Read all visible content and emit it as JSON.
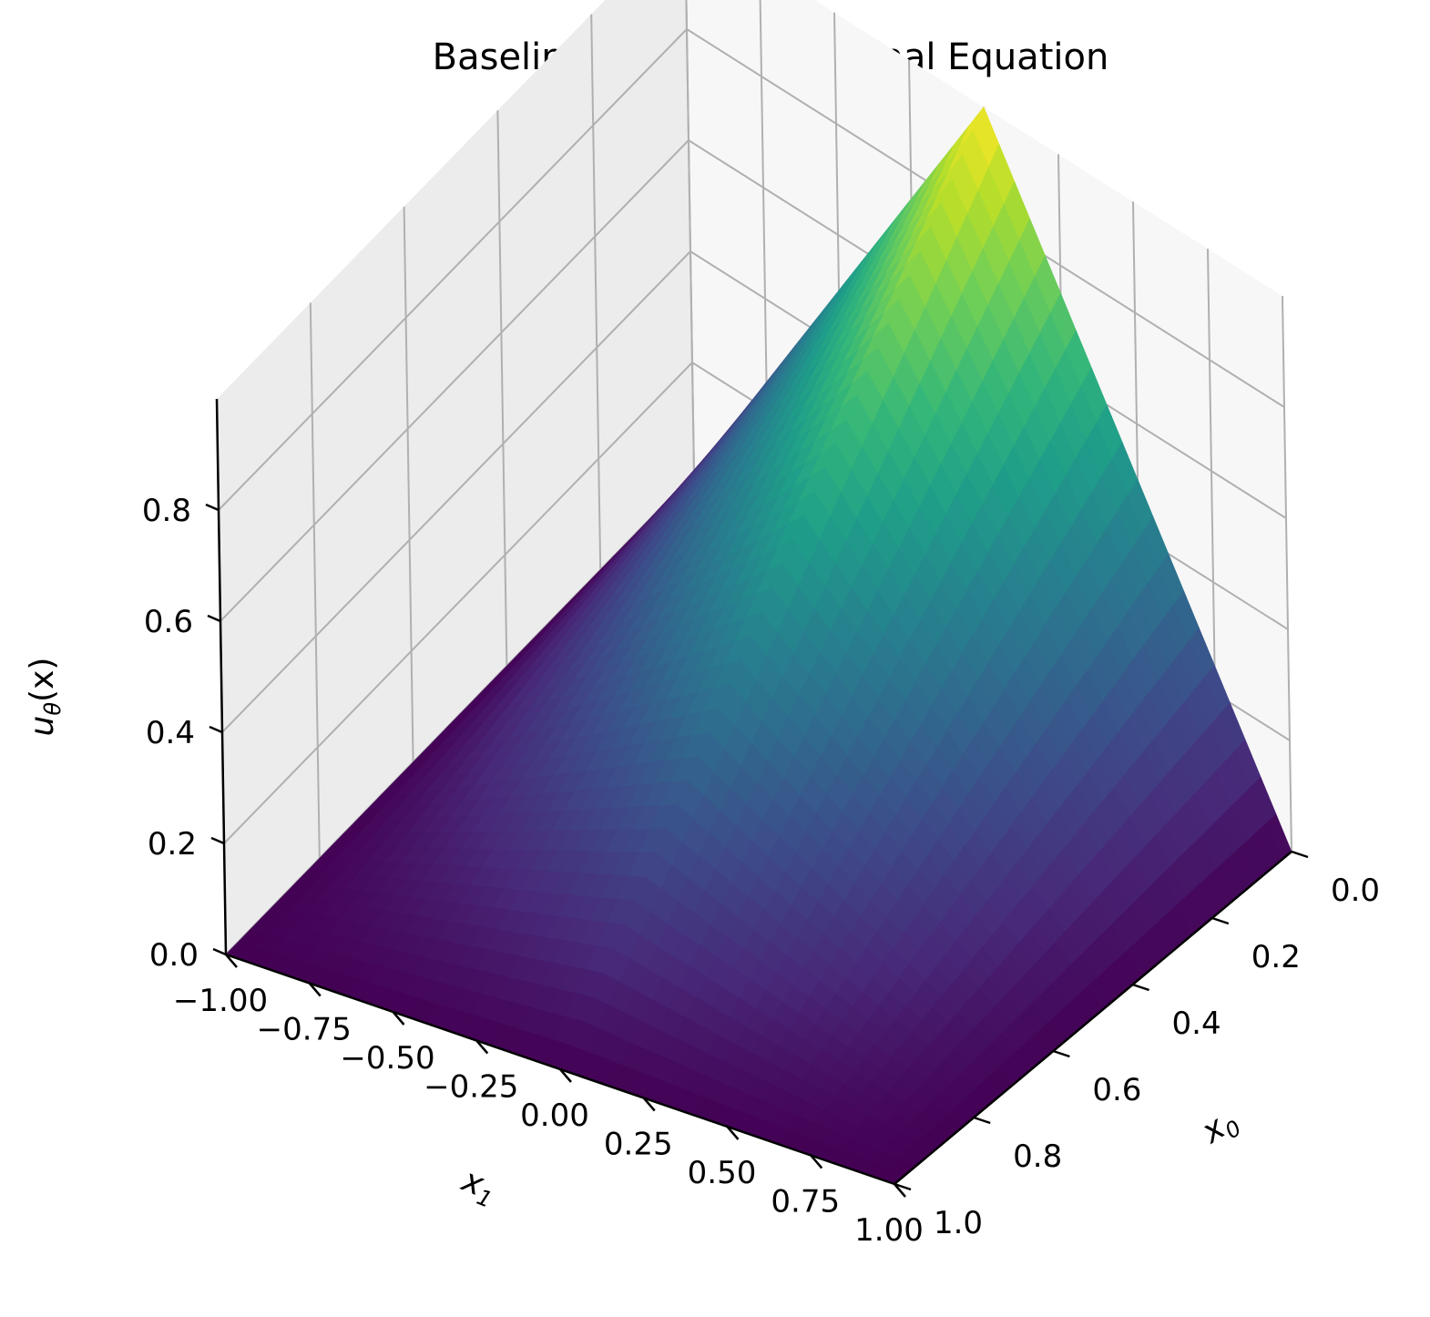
{
  "chart_data": {
    "type": "surface3d",
    "title": "Baseline Solution of Eikonal Equation",
    "xlabel": "x₀",
    "ylabel": "x₁",
    "zlabel": "uθ(x)",
    "x_label_main": "x",
    "x_label_sub": "0",
    "y_label_main": "x",
    "y_label_sub": "1",
    "z_label_main": "u",
    "z_label_sub": "θ",
    "z_label_tail": "(x)",
    "x_range": [
      0.0,
      1.0
    ],
    "y_range": [
      -1.0,
      1.0
    ],
    "z_range": [
      0.0,
      1.0
    ],
    "x_ticks": [
      "0.0",
      "0.2",
      "0.4",
      "0.6",
      "0.8",
      "1.0"
    ],
    "y_ticks": [
      "−1.00",
      "−0.75",
      "−0.50",
      "−0.25",
      "0.00",
      "0.25",
      "0.50",
      "0.75",
      "1.00"
    ],
    "z_ticks": [
      "0.0",
      "0.2",
      "0.4",
      "0.6",
      "0.8"
    ],
    "surface": {
      "formula": "u = (1 - |x1|) * (1 - x0)",
      "peak": {
        "x0": 0.0,
        "x1": 0.0,
        "u": 1.0
      },
      "edge_values": {
        "x0=1": 0.0,
        "x1=-1": 0.0,
        "x1=1": 0.0
      }
    },
    "colormap": "viridis",
    "colormap_stops": [
      "#440154",
      "#482878",
      "#3e4989",
      "#31688e",
      "#26828e",
      "#1f9e89",
      "#35b779",
      "#6ece58",
      "#b5de2b",
      "#fde725"
    ],
    "pane_colors": [
      "#f2f2f2",
      "#ececec",
      "#f7f7f7"
    ],
    "grid": true
  }
}
